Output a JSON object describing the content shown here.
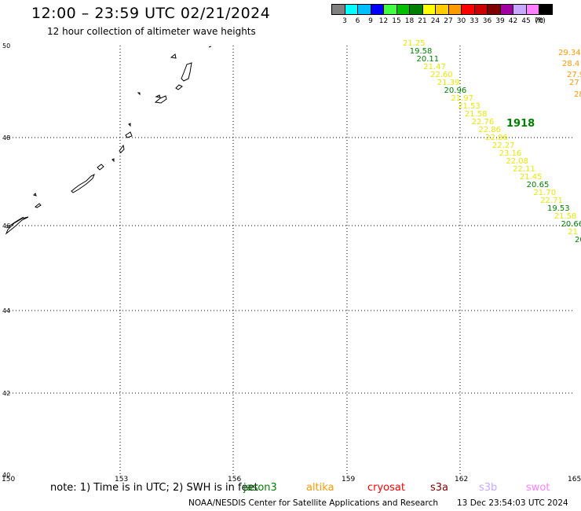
{
  "header": {
    "title": "12:00 – 23:59 UTC 02/21/2024",
    "subtitle": "12 hour collection of altimeter wave heights"
  },
  "legend": {
    "colors": [
      "#808080",
      "#00ffff",
      "#00bfff",
      "#0000ff",
      "#40ff40",
      "#00c000",
      "#008000",
      "#ffff00",
      "#ffcc00",
      "#ff9900",
      "#ff0000",
      "#cc0000",
      "#800000",
      "#a000a0",
      "#c8a8ff",
      "#ff80ff",
      "#000000"
    ],
    "tick_labels": [
      "3",
      "6",
      "9",
      "12",
      "15",
      "18",
      "21",
      "24",
      "27",
      "30",
      "33",
      "36",
      "39",
      "42",
      "45",
      "70",
      "(ft)"
    ]
  },
  "axes": {
    "lon_labels": [
      "150",
      "153",
      "156",
      "159",
      "162",
      "165"
    ],
    "lat_labels": [
      "50",
      "48",
      "46",
      "44",
      "42",
      "40"
    ]
  },
  "track_labels": [
    {
      "text": "21.25",
      "color": "#e8e800"
    },
    {
      "text": "19.58",
      "color": "#008000"
    },
    {
      "text": "20.11",
      "color": "#008000"
    },
    {
      "text": "21.47",
      "color": "#e8e800"
    },
    {
      "text": "22.60",
      "color": "#e8e800"
    },
    {
      "text": "21.39",
      "color": "#e8e800"
    },
    {
      "text": "20.96",
      "color": "#008000"
    },
    {
      "text": "21.97",
      "color": "#e8e800"
    },
    {
      "text": "21.53",
      "color": "#e8e800"
    },
    {
      "text": "21.58",
      "color": "#e8e800"
    },
    {
      "text": "22.76",
      "color": "#e8e800"
    },
    {
      "text": "22.86",
      "color": "#e8e800"
    },
    {
      "text": "22.86",
      "color": "#e8e800"
    },
    {
      "text": "22.27",
      "color": "#e8e800"
    },
    {
      "text": "23.16",
      "color": "#e8e800"
    },
    {
      "text": "22.08",
      "color": "#e8e800"
    },
    {
      "text": "22.11",
      "color": "#e8e800"
    },
    {
      "text": "21.45",
      "color": "#e8e800"
    },
    {
      "text": "20.65",
      "color": "#008000"
    },
    {
      "text": "21.70",
      "color": "#e8e800"
    },
    {
      "text": "22.71",
      "color": "#e8e800"
    },
    {
      "text": "19.53",
      "color": "#008000"
    },
    {
      "text": "21.58",
      "color": "#e8e800"
    },
    {
      "text": "20.66",
      "color": "#008000"
    },
    {
      "text": "21",
      "color": "#e8e800"
    },
    {
      "text": "20",
      "color": "#008000"
    }
  ],
  "track_time_label": {
    "text": "1918",
    "color": "#008000"
  },
  "right_edge_labels": [
    {
      "text": "29.34",
      "color": "#ff9900"
    },
    {
      "text": "28.4",
      "color": "#ff9900"
    },
    {
      "text": "27.9",
      "color": "#ff9900"
    },
    {
      "text": "27",
      "color": "#ff9900"
    },
    {
      "text": "28",
      "color": "#ff9900"
    }
  ],
  "footer": {
    "note": "note: 1) Time is in UTC; 2) SWH is in feet",
    "satellites": [
      {
        "name": "jason3",
        "color": "#008000"
      },
      {
        "name": "altika",
        "color": "#ff9900"
      },
      {
        "name": "cryosat",
        "color": "#ff0000"
      },
      {
        "name": "s3a",
        "color": "#800000"
      },
      {
        "name": "s3b",
        "color": "#c8a8ff"
      },
      {
        "name": "swot",
        "color": "#ff80ff"
      }
    ],
    "credit": "NOAA/NESDIS Center for Satellite Applications and Research",
    "timestamp": "13 Dec 23:54:03 UTC 2024"
  }
}
